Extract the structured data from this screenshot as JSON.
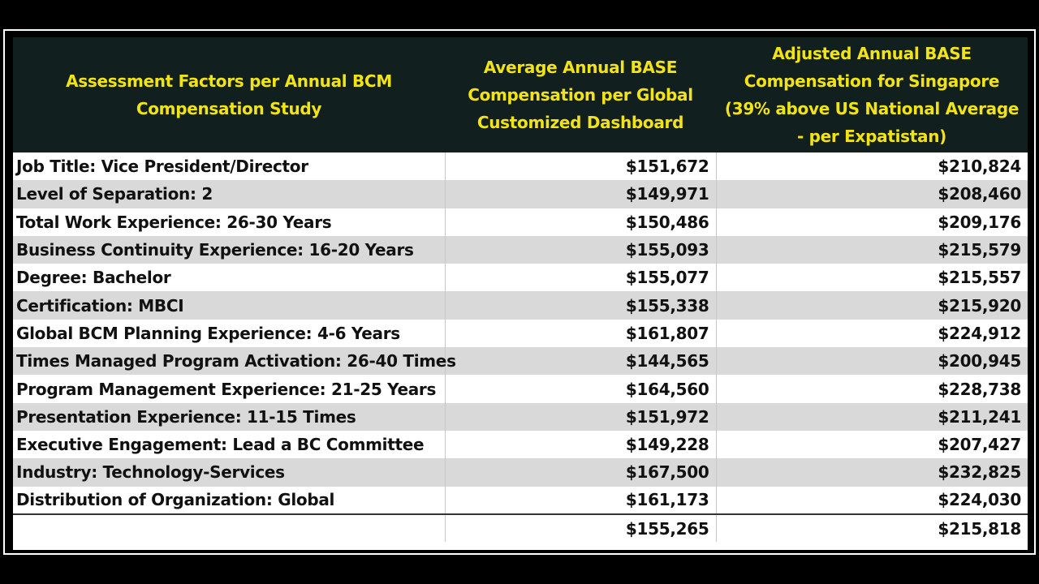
{
  "table": {
    "headers": [
      "Assessment Factors per Annual BCM Compensation Study",
      "Average Annual BASE Compensation per Global Customized Dashboard",
      "Adjusted Annual BASE Compensation for Singapore (39% above US National Average - per Expatistan)"
    ],
    "rows": [
      {
        "factor": "Job Title: Vice President/Director",
        "avg": "$151,672",
        "adjusted": "$210,824"
      },
      {
        "factor": "Level of Separation: 2",
        "avg": "$149,971",
        "adjusted": "$208,460"
      },
      {
        "factor": "Total Work Experience: 26-30 Years",
        "avg": "$150,486",
        "adjusted": "$209,176"
      },
      {
        "factor": "Business Continuity Experience: 16-20 Years",
        "avg": "$155,093",
        "adjusted": "$215,579"
      },
      {
        "factor": "Degree: Bachelor",
        "avg": "$155,077",
        "adjusted": "$215,557"
      },
      {
        "factor": "Certification: MBCI",
        "avg": "$155,338",
        "adjusted": "$215,920"
      },
      {
        "factor": "Global BCM Planning Experience: 4-6 Years",
        "avg": "$161,807",
        "adjusted": "$224,912"
      },
      {
        "factor": "Times Managed Program Activation: 26-40 Times",
        "avg": "$144,565",
        "adjusted": "$200,945"
      },
      {
        "factor": "Program Management Experience: 21-25 Years",
        "avg": "$164,560",
        "adjusted": "$228,738"
      },
      {
        "factor": "Presentation Experience: 11-15 Times",
        "avg": "$151,972",
        "adjusted": "$211,241"
      },
      {
        "factor": "Executive Engagement: Lead a BC Committee",
        "avg": "$149,228",
        "adjusted": "$207,427"
      },
      {
        "factor": "Industry: Technology-Services",
        "avg": "$167,500",
        "adjusted": "$232,825"
      },
      {
        "factor": "Distribution of Organization: Global",
        "avg": "$161,173",
        "adjusted": "$224,030"
      }
    ],
    "total": {
      "factor": "",
      "avg": "$155,265",
      "adjusted": "$215,818"
    }
  },
  "colors": {
    "header_bg": "#11201e",
    "header_text": "#f2e319",
    "row_alt": "#d9d9d9"
  }
}
